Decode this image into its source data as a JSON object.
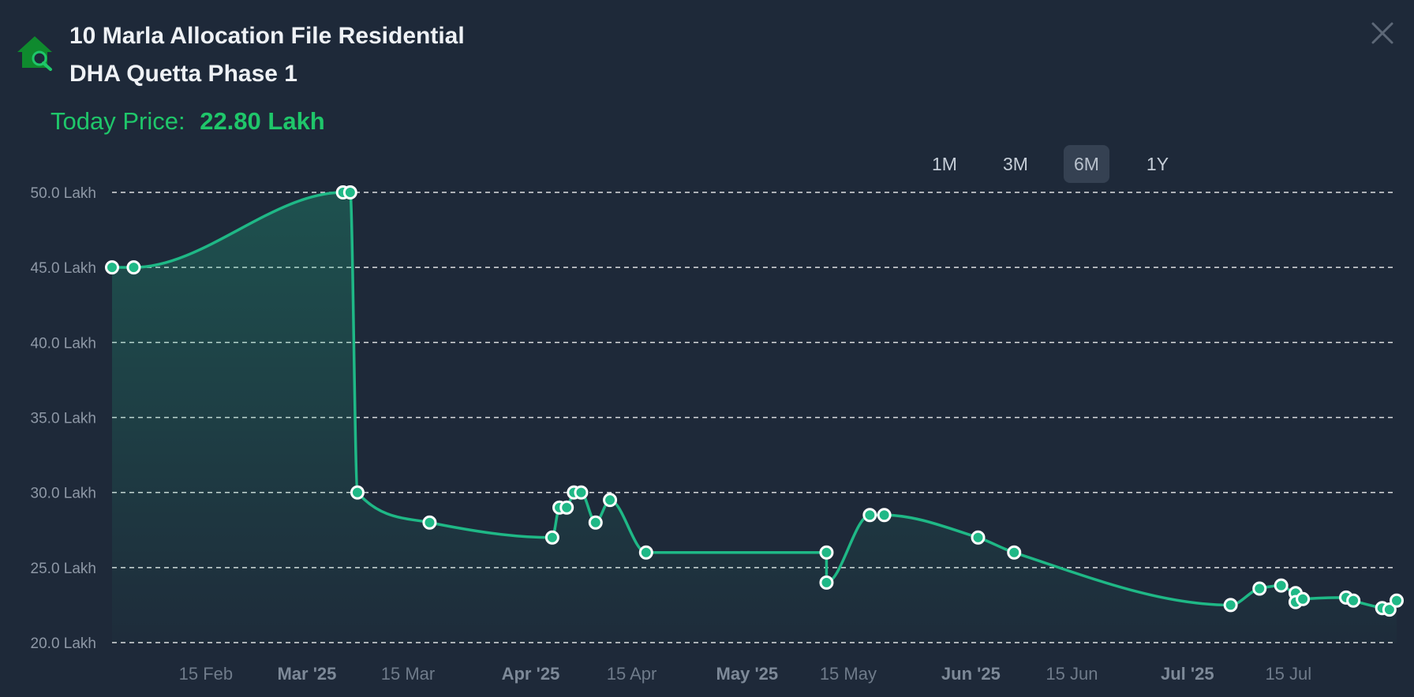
{
  "header": {
    "title_line1": "10 Marla Allocation File Residential",
    "title_line2": "DHA Quetta Phase 1",
    "logo_icon": "house-search-icon",
    "close_icon": "close-icon"
  },
  "price": {
    "label": "Today Price:",
    "value": "22.80 Lakh"
  },
  "ranges": {
    "items": [
      "1M",
      "3M",
      "6M",
      "1Y"
    ],
    "active": "6M"
  },
  "colors": {
    "background": "#1e2939",
    "line": "#1fb886",
    "accent": "#1fc66a",
    "grid": "#ffffff"
  },
  "chart_data": {
    "type": "area",
    "x_axis_type": "date",
    "y_unit": "Lakh",
    "ylim": [
      20,
      50
    ],
    "y_ticks": [
      {
        "value": 50,
        "label": "50.0 Lakh"
      },
      {
        "value": 45,
        "label": "45.0 Lakh"
      },
      {
        "value": 40,
        "label": "40.0 Lakh"
      },
      {
        "value": 35,
        "label": "35.0 Lakh"
      },
      {
        "value": 30,
        "label": "30.0 Lakh"
      },
      {
        "value": 25,
        "label": "25.0 Lakh"
      },
      {
        "value": 20,
        "label": "20.0 Lakh"
      }
    ],
    "x_ticks": [
      {
        "date": "2025-02-15",
        "label": "15 Feb",
        "bold": false
      },
      {
        "date": "2025-03-01",
        "label": "Mar '25",
        "bold": true
      },
      {
        "date": "2025-03-15",
        "label": "15 Mar",
        "bold": false
      },
      {
        "date": "2025-04-01",
        "label": "Apr '25",
        "bold": true
      },
      {
        "date": "2025-04-15",
        "label": "15 Apr",
        "bold": false
      },
      {
        "date": "2025-05-01",
        "label": "May '25",
        "bold": true
      },
      {
        "date": "2025-05-15",
        "label": "15 May",
        "bold": false
      },
      {
        "date": "2025-06-01",
        "label": "Jun '25",
        "bold": true
      },
      {
        "date": "2025-06-15",
        "label": "15 Jun",
        "bold": false
      },
      {
        "date": "2025-07-01",
        "label": "Jul '25",
        "bold": true
      },
      {
        "date": "2025-07-15",
        "label": "15 Jul",
        "bold": false
      }
    ],
    "grid": true,
    "series": [
      {
        "points": [
          {
            "date": "2025-02-02",
            "value": 45.0
          },
          {
            "date": "2025-02-05",
            "value": 45.0
          },
          {
            "date": "2025-03-06",
            "value": 50.0
          },
          {
            "date": "2025-03-07",
            "value": 50.0
          },
          {
            "date": "2025-03-08",
            "value": 30.0
          },
          {
            "date": "2025-03-18",
            "value": 28.0
          },
          {
            "date": "2025-04-04",
            "value": 27.0
          },
          {
            "date": "2025-04-05",
            "value": 29.0
          },
          {
            "date": "2025-04-06",
            "value": 29.0
          },
          {
            "date": "2025-04-07",
            "value": 30.0
          },
          {
            "date": "2025-04-08",
            "value": 30.0
          },
          {
            "date": "2025-04-10",
            "value": 28.0
          },
          {
            "date": "2025-04-12",
            "value": 29.5
          },
          {
            "date": "2025-04-17",
            "value": 26.0
          },
          {
            "date": "2025-05-12",
            "value": 26.0
          },
          {
            "date": "2025-05-12",
            "value": 24.0
          },
          {
            "date": "2025-05-18",
            "value": 28.5
          },
          {
            "date": "2025-05-20",
            "value": 28.5
          },
          {
            "date": "2025-06-02",
            "value": 27.0
          },
          {
            "date": "2025-06-07",
            "value": 26.0
          },
          {
            "date": "2025-07-07",
            "value": 22.5
          },
          {
            "date": "2025-07-11",
            "value": 23.6
          },
          {
            "date": "2025-07-14",
            "value": 23.8
          },
          {
            "date": "2025-07-16",
            "value": 23.3
          },
          {
            "date": "2025-07-16",
            "value": 22.7
          },
          {
            "date": "2025-07-17",
            "value": 22.9
          },
          {
            "date": "2025-07-23",
            "value": 23.0
          },
          {
            "date": "2025-07-24",
            "value": 22.8
          },
          {
            "date": "2025-07-28",
            "value": 22.3
          },
          {
            "date": "2025-07-29",
            "value": 22.2
          },
          {
            "date": "2025-07-30",
            "value": 22.8
          }
        ]
      }
    ]
  }
}
